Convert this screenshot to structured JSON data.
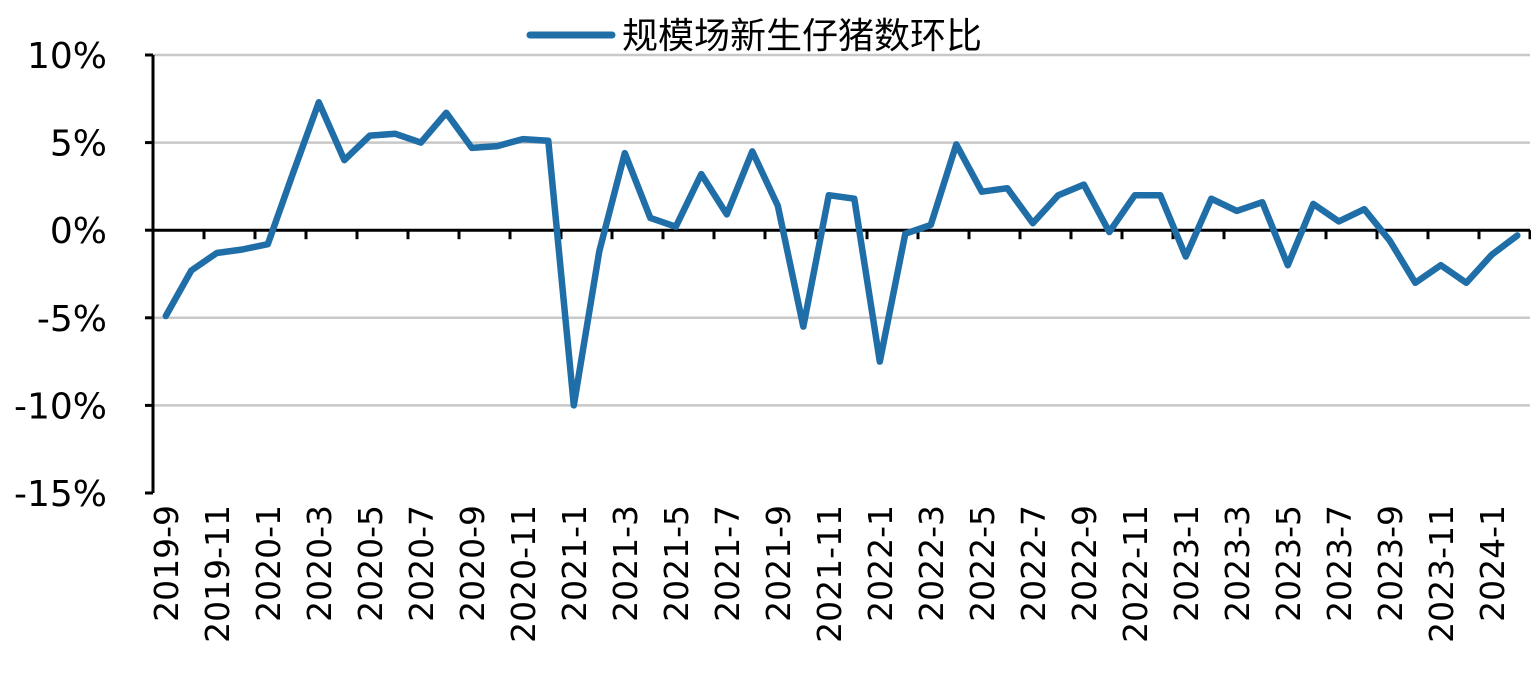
{
  "chart_data": {
    "type": "line",
    "legend_position": "top-center",
    "grid": true,
    "ylim": [
      -15,
      10
    ],
    "y_ticks": [
      10,
      5,
      0,
      -5,
      -10,
      -15
    ],
    "y_tick_labels": [
      "10%",
      "5%",
      "0%",
      "-5%",
      "-10%",
      "-15%"
    ],
    "x": [
      "2019-9",
      "2019-10",
      "2019-11",
      "2019-12",
      "2020-1",
      "2020-2",
      "2020-3",
      "2020-4",
      "2020-5",
      "2020-6",
      "2020-7",
      "2020-8",
      "2020-9",
      "2020-10",
      "2020-11",
      "2020-12",
      "2021-1",
      "2021-2",
      "2021-3",
      "2021-4",
      "2021-5",
      "2021-6",
      "2021-7",
      "2021-8",
      "2021-9",
      "2021-10",
      "2021-11",
      "2021-12",
      "2022-1",
      "2022-2",
      "2022-3",
      "2022-4",
      "2022-5",
      "2022-6",
      "2022-7",
      "2022-8",
      "2022-9",
      "2022-10",
      "2022-11",
      "2022-12",
      "2023-1",
      "2023-2",
      "2023-3",
      "2023-4",
      "2023-5",
      "2023-6",
      "2023-7",
      "2023-8",
      "2023-9",
      "2023-10",
      "2023-11",
      "2023-12",
      "2024-1",
      "2024-2"
    ],
    "x_tick_labels": [
      "2019-9",
      "2019-11",
      "2020-1",
      "2020-3",
      "2020-5",
      "2020-7",
      "2020-9",
      "2020-11",
      "2021-1",
      "2021-3",
      "2021-5",
      "2021-7",
      "2021-9",
      "2021-11",
      "2022-1",
      "2022-3",
      "2022-5",
      "2022-7",
      "2022-9",
      "2022-11",
      "2023-1",
      "2023-3",
      "2023-5",
      "2023-7",
      "2023-9",
      "2023-11",
      "2024-1"
    ],
    "series": [
      {
        "name": "规模场新生仔猪数环比",
        "color": "#1f6ea8",
        "values": [
          -4.9,
          -2.3,
          -1.3,
          -1.1,
          -0.8,
          3.3,
          7.3,
          4.0,
          5.4,
          5.5,
          5.0,
          6.7,
          4.7,
          4.8,
          5.2,
          5.1,
          -10.0,
          -1.2,
          4.4,
          0.7,
          0.2,
          3.2,
          0.9,
          4.5,
          1.4,
          -5.5,
          2.0,
          1.8,
          -7.5,
          -0.2,
          0.3,
          4.9,
          2.2,
          2.4,
          0.4,
          2.0,
          2.6,
          -0.1,
          2.0,
          2.0,
          -1.5,
          1.8,
          1.1,
          1.6,
          -2.0,
          1.5,
          0.5,
          1.2,
          -0.6,
          -3.0,
          -2.0,
          -3.0,
          -1.4,
          -0.3
        ]
      }
    ]
  }
}
